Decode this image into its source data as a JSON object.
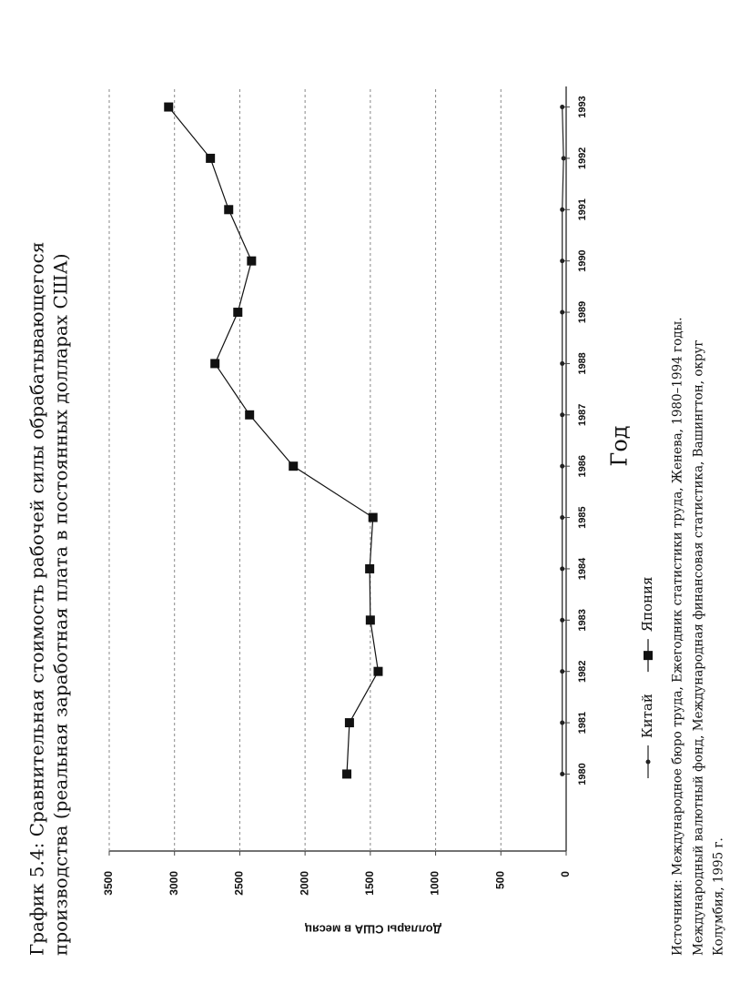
{
  "chart_data": {
    "type": "line",
    "title": [
      "График 5.4: Сравнительная стоимость рабочей силы обрабатывающегося",
      "производства (реальная заработная плата в постоянных долларах США)"
    ],
    "x_label": "Год",
    "y_label": "Доллары США в месяц",
    "source": [
      "Источники: Международное бюро труда, Ежегодник статистики труда, Женева, 1980–1994 годы.",
      "Международный валютный фонд, Международная финансовая статистика, Вашингтон, округ",
      "Колумбия, 1995 г."
    ],
    "x": [
      1980,
      1981,
      1982,
      1983,
      1984,
      1985,
      1986,
      1987,
      1988,
      1989,
      1990,
      1991,
      1992,
      1993
    ],
    "xlim": [
      1978.5,
      1993.4
    ],
    "series": [
      {
        "name": "Китай",
        "color": "#222222",
        "marker": "dot",
        "values": [
          30,
          30,
          30,
          30,
          30,
          30,
          30,
          30,
          30,
          30,
          30,
          30,
          20,
          30
        ]
      },
      {
        "name": "Япония",
        "color": "#111111",
        "marker": "square",
        "values": [
          1680,
          1660,
          1440,
          1500,
          1505,
          1480,
          2090,
          2425,
          2690,
          2515,
          2410,
          2585,
          2725,
          3045
        ]
      }
    ],
    "ylim": [
      0,
      3500
    ],
    "yticks": [
      0,
      500,
      1000,
      1500,
      2000,
      2500,
      3000,
      3500
    ],
    "grid": true
  }
}
